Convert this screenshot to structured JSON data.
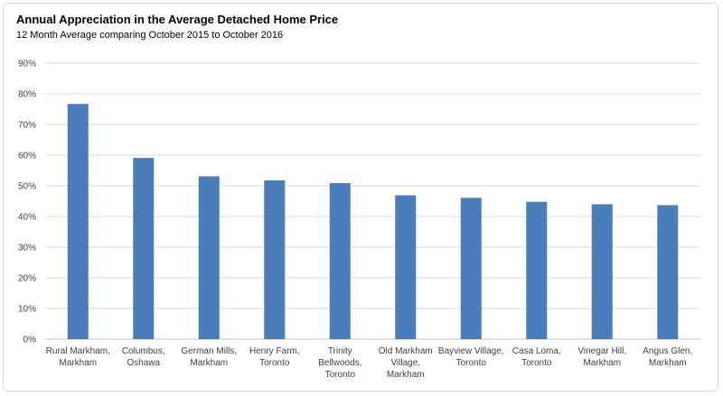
{
  "chart_data": {
    "type": "bar",
    "title": "Annual Appreciation in the Average Detached Home Price",
    "subtitle": "12 Month Average comparing October 2015 to October 2016",
    "xlabel": "",
    "ylabel": "",
    "ylim": [
      0,
      90
    ],
    "yticks": [
      "0%",
      "10%",
      "20%",
      "30%",
      "40%",
      "50%",
      "60%",
      "70%",
      "80%",
      "90%"
    ],
    "grid": true,
    "legend": "none",
    "bar_color": "#4a7ebb",
    "categories": [
      [
        "Rural Markham,",
        "Markham"
      ],
      [
        "Columbus,",
        "Oshawa"
      ],
      [
        "German Mills,",
        "Markham"
      ],
      [
        "Henry Farm,",
        "Toronto"
      ],
      [
        "Trinity",
        "Bellwoods,",
        "Toronto"
      ],
      [
        "Old Markham",
        "Village,",
        "Markham"
      ],
      [
        "Bayview Village,",
        "Toronto"
      ],
      [
        "Casa Loma,",
        "Toronto"
      ],
      [
        "Vinegar Hill,",
        "Markham"
      ],
      [
        "Angus Glen,",
        "Markham"
      ]
    ],
    "values": [
      76.7,
      59.1,
      53.1,
      51.8,
      50.9,
      46.9,
      46.1,
      44.8,
      44.0,
      43.7
    ]
  }
}
